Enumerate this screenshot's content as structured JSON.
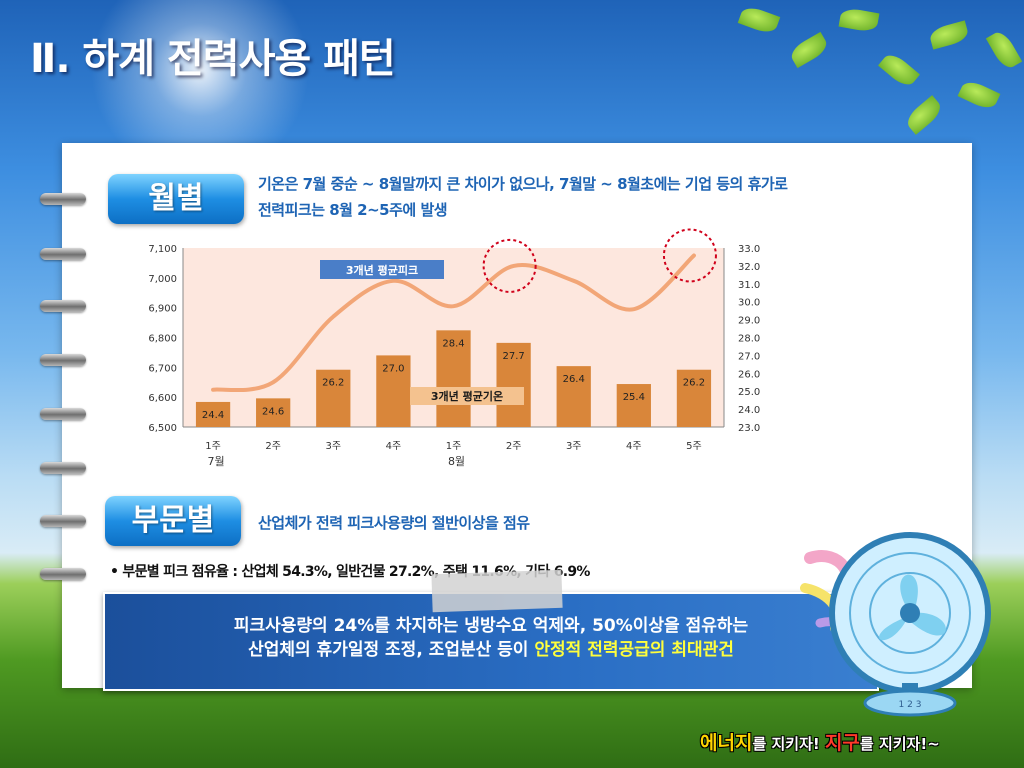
{
  "page": {
    "title": "Ⅱ. 하계 전력사용 패턴"
  },
  "section_monthly": {
    "label": "월별",
    "desc_line1": "기온은 7월 중순 ~ 8월말까지 큰 차이가 없으나,  7월말 ~ 8월초에는 기업 등의 휴가로",
    "desc_line2": "전력피크는 8월 2~5주에 발생"
  },
  "section_sector": {
    "label": "부문별",
    "desc": "산업체가 전력 피크사용량의 절반이상을 점유",
    "bullet": "•   부문별 피크 점유율 : 산업체 54.3%, 일반건물 27.2%, 주택 11.6%, 기타 6.9%"
  },
  "banner": {
    "line1": "피크사용량의 24%를 차지하는 냉방수요 억제와, 50%이상을 점유하는",
    "line2_a": "산업체의 휴가일정 조정, 조업분산 등이 ",
    "line2_b": "안정적 전력공급의 최대관건"
  },
  "slogan": {
    "p1": "에너지",
    "p2": "를 ",
    "p3": "지키자! ",
    "p4": "지구",
    "p5": "를 ",
    "p6": "지키자!~"
  },
  "fan_label": "1 2 3",
  "colors": {
    "bar": "#d9863a",
    "line": "#f2a677",
    "plot_bg": "#fde7de",
    "highlight_circle": "#d0021b",
    "callout": "#4a7ec8"
  },
  "chart_data": {
    "type": "bar+line",
    "categories": [
      "1주",
      "2주",
      "3주",
      "4주",
      "1주",
      "2주",
      "3주",
      "4주",
      "5주"
    ],
    "group_labels": [
      "7월",
      "8월"
    ],
    "series": [
      {
        "name": "3개년 평균기온",
        "type": "bar",
        "axis": "right",
        "values": [
          24.4,
          24.6,
          26.2,
          27.0,
          28.4,
          27.7,
          26.4,
          25.4,
          26.2
        ]
      },
      {
        "name": "3개년 평균피크",
        "type": "line",
        "axis": "left",
        "values": [
          6625,
          6650,
          6870,
          6990,
          6905,
          7040,
          6990,
          6895,
          7075
        ]
      }
    ],
    "y_left": {
      "range": [
        6500,
        7100
      ],
      "ticks": [
        "6,500",
        "6,600",
        "6,700",
        "6,800",
        "6,900",
        "7,000",
        "7,100"
      ]
    },
    "y_right": {
      "range": [
        23.0,
        33.0
      ],
      "ticks": [
        "23.0",
        "24.0",
        "25.0",
        "26.0",
        "27.0",
        "28.0",
        "29.0",
        "30.0",
        "31.0",
        "32.0",
        "33.0"
      ]
    },
    "highlights": [
      5,
      8
    ]
  }
}
